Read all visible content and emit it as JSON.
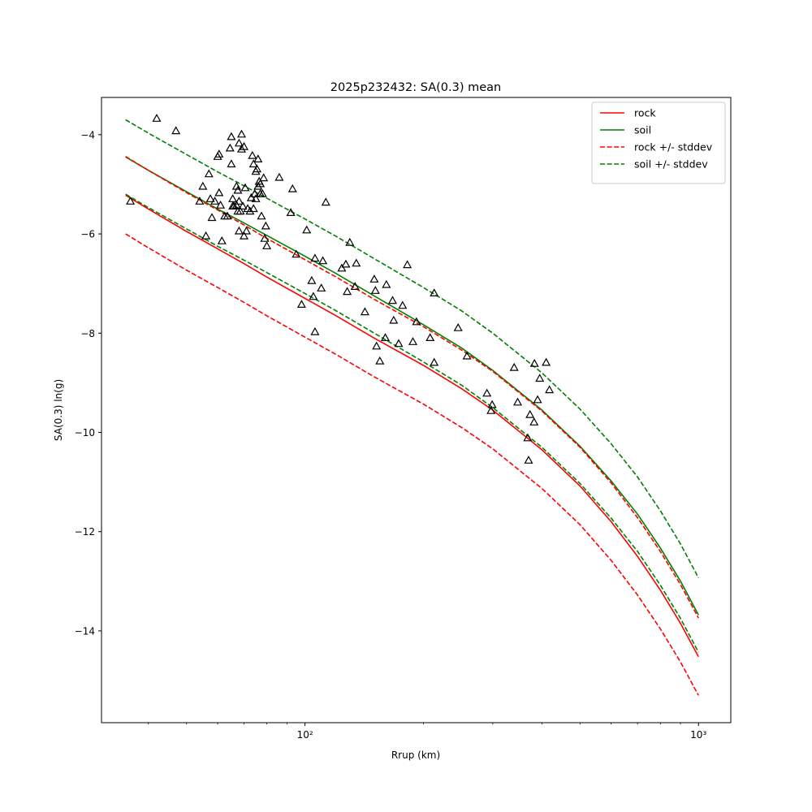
{
  "chart_data": {
    "type": "line",
    "title": "2025p232432: SA(0.3) mean",
    "xlabel": "Rrup (km)",
    "ylabel": "SA(0.3) ln(g)",
    "x_scale": "log",
    "xlim": [
      30.4,
      1208
    ],
    "ylim": [
      -15.85,
      -3.25
    ],
    "x_tick_labels": [
      {
        "value": 100,
        "label": "10²"
      },
      {
        "value": 1000,
        "label": "10³"
      }
    ],
    "y_ticks": [
      -14,
      -12,
      -10,
      -8,
      -6,
      -4
    ],
    "y_tick_labels": [
      "−14",
      "−12",
      "−10",
      "−8",
      "−6",
      "−4"
    ],
    "grid": false,
    "legend_position": "top-right",
    "series": [
      {
        "name": "rock",
        "color": "#ff0000",
        "dash": "solid",
        "legend": true,
        "x": [
          35,
          40,
          50,
          60,
          70,
          80,
          100,
          120,
          150,
          200,
          250,
          300,
          400,
          500,
          600,
          700,
          800,
          900,
          1000
        ],
        "y": [
          -5.22,
          -5.5,
          -5.95,
          -6.3,
          -6.6,
          -6.87,
          -7.3,
          -7.65,
          -8.1,
          -8.65,
          -9.12,
          -9.55,
          -10.35,
          -11.08,
          -11.8,
          -12.5,
          -13.18,
          -13.85,
          -14.52
        ]
      },
      {
        "name": "soil",
        "color": "#008000",
        "dash": "solid",
        "legend": true,
        "x": [
          35,
          40,
          50,
          60,
          70,
          80,
          100,
          120,
          150,
          200,
          250,
          300,
          400,
          500,
          600,
          700,
          800,
          900,
          1000
        ],
        "y": [
          -4.45,
          -4.72,
          -5.15,
          -5.5,
          -5.78,
          -6.03,
          -6.45,
          -6.8,
          -7.25,
          -7.83,
          -8.3,
          -8.75,
          -9.55,
          -10.28,
          -10.98,
          -11.65,
          -12.33,
          -13.0,
          -13.68
        ]
      },
      {
        "name": "rock +/- stddev",
        "color": "#ff0000",
        "dash": "dashed",
        "legend": true,
        "x": [
          35,
          40,
          50,
          60,
          70,
          80,
          100,
          120,
          150,
          200,
          250,
          300,
          400,
          500,
          600,
          700,
          800,
          900,
          1000
        ],
        "y": [
          -6.0,
          -6.28,
          -6.73,
          -7.08,
          -7.38,
          -7.65,
          -8.08,
          -8.43,
          -8.88,
          -9.43,
          -9.9,
          -10.33,
          -11.13,
          -11.86,
          -12.58,
          -13.28,
          -13.96,
          -14.63,
          -15.3
        ]
      },
      {
        "name": "rock +/- stddev",
        "color": "#ff0000",
        "dash": "dashed",
        "legend": false,
        "x": [
          35,
          40,
          50,
          60,
          70,
          80,
          100,
          120,
          150,
          200,
          250,
          300,
          400,
          500,
          600,
          700,
          800,
          900,
          1000
        ],
        "y": [
          -4.44,
          -4.72,
          -5.17,
          -5.52,
          -5.82,
          -6.09,
          -6.52,
          -6.87,
          -7.32,
          -7.87,
          -8.34,
          -8.77,
          -9.57,
          -10.3,
          -11.02,
          -11.72,
          -12.4,
          -13.07,
          -13.74
        ]
      },
      {
        "name": "soil +/- stddev",
        "color": "#008000",
        "dash": "dashed",
        "legend": true,
        "x": [
          35,
          40,
          50,
          60,
          70,
          80,
          100,
          120,
          150,
          200,
          250,
          300,
          400,
          500,
          600,
          700,
          800,
          900,
          1000
        ],
        "y": [
          -5.2,
          -5.47,
          -5.9,
          -6.25,
          -6.53,
          -6.78,
          -7.2,
          -7.55,
          -8.0,
          -8.58,
          -9.05,
          -9.5,
          -10.3,
          -11.03,
          -11.73,
          -12.4,
          -13.08,
          -13.75,
          -14.43
        ]
      },
      {
        "name": "soil +/- stddev",
        "color": "#008000",
        "dash": "dashed",
        "legend": false,
        "x": [
          35,
          40,
          50,
          60,
          70,
          80,
          100,
          120,
          150,
          200,
          250,
          300,
          400,
          500,
          600,
          700,
          800,
          900,
          1000
        ],
        "y": [
          -3.7,
          -3.97,
          -4.4,
          -4.75,
          -5.03,
          -5.28,
          -5.7,
          -6.05,
          -6.5,
          -7.08,
          -7.55,
          -8.0,
          -8.8,
          -9.53,
          -10.23,
          -10.9,
          -11.58,
          -12.25,
          -12.93
        ]
      }
    ],
    "observations": {
      "marker": "triangle-open",
      "color": "#000000",
      "points": [
        [
          36,
          -5.35
        ],
        [
          42,
          -3.68
        ],
        [
          47,
          -3.93
        ],
        [
          54,
          -5.35
        ],
        [
          55,
          -5.05
        ],
        [
          56,
          -6.05
        ],
        [
          57,
          -4.8
        ],
        [
          57.5,
          -5.3
        ],
        [
          58,
          -5.68
        ],
        [
          59,
          -5.35
        ],
        [
          60,
          -4.45
        ],
        [
          60.5,
          -4.4
        ],
        [
          60.5,
          -5.18
        ],
        [
          61,
          -5.43
        ],
        [
          61.5,
          -6.15
        ],
        [
          62.5,
          -5.65
        ],
        [
          63.5,
          -5.65
        ],
        [
          64.5,
          -4.28
        ],
        [
          65,
          -4.05
        ],
        [
          65,
          -4.6
        ],
        [
          65.5,
          -5.45
        ],
        [
          65.5,
          -5.3
        ],
        [
          66,
          -5.45
        ],
        [
          67,
          -5.43
        ],
        [
          67,
          -5.05
        ],
        [
          67.5,
          -5.55
        ],
        [
          67.5,
          -5.13
        ],
        [
          68,
          -5.35
        ],
        [
          68,
          -4.18
        ],
        [
          68,
          -5.95
        ],
        [
          68.5,
          -5.55
        ],
        [
          69,
          -4.0
        ],
        [
          69,
          -4.3
        ],
        [
          69.5,
          -5.45
        ],
        [
          70,
          -4.25
        ],
        [
          70,
          -6.05
        ],
        [
          70.5,
          -5.08
        ],
        [
          71,
          -5.95
        ],
        [
          71.5,
          -5.5
        ],
        [
          72.5,
          -5.55
        ],
        [
          73,
          -5.28
        ],
        [
          73.5,
          -4.43
        ],
        [
          74,
          -4.6
        ],
        [
          74,
          -5.5
        ],
        [
          74.5,
          -5.2
        ],
        [
          75,
          -4.75
        ],
        [
          75,
          -5.3
        ],
        [
          75.5,
          -4.7
        ],
        [
          76,
          -4.5
        ],
        [
          76,
          -5.05
        ],
        [
          76.5,
          -4.95
        ],
        [
          77,
          -5.2
        ],
        [
          77,
          -5.0
        ],
        [
          77.5,
          -5.65
        ],
        [
          78,
          -5.2
        ],
        [
          78.5,
          -4.88
        ],
        [
          79,
          -6.1
        ],
        [
          79.5,
          -5.85
        ],
        [
          80,
          -6.25
        ],
        [
          86,
          -4.87
        ],
        [
          92,
          -5.58
        ],
        [
          93,
          -5.1
        ],
        [
          95,
          -6.42
        ],
        [
          98,
          -7.43
        ],
        [
          101,
          -5.93
        ],
        [
          104,
          -6.95
        ],
        [
          105,
          -7.27
        ],
        [
          106,
          -6.5
        ],
        [
          106,
          -7.98
        ],
        [
          110,
          -7.1
        ],
        [
          111,
          -6.55
        ],
        [
          113,
          -5.37
        ],
        [
          124,
          -6.7
        ],
        [
          127,
          -6.62
        ],
        [
          128,
          -7.17
        ],
        [
          130,
          -6.18
        ],
        [
          134,
          -7.07
        ],
        [
          135,
          -6.6
        ],
        [
          142,
          -7.58
        ],
        [
          150,
          -6.92
        ],
        [
          151,
          -7.15
        ],
        [
          152,
          -8.27
        ],
        [
          155,
          -8.57
        ],
        [
          160,
          -8.1
        ],
        [
          161,
          -7.03
        ],
        [
          167,
          -7.35
        ],
        [
          168,
          -7.75
        ],
        [
          173,
          -8.22
        ],
        [
          177,
          -7.45
        ],
        [
          182,
          -6.63
        ],
        [
          188,
          -8.18
        ],
        [
          192,
          -7.78
        ],
        [
          208,
          -8.1
        ],
        [
          213,
          -7.2
        ],
        [
          213,
          -8.6
        ],
        [
          245,
          -7.9
        ],
        [
          258,
          -8.47
        ],
        [
          290,
          -9.22
        ],
        [
          297,
          -9.57
        ],
        [
          299,
          -9.45
        ],
        [
          340,
          -8.7
        ],
        [
          347,
          -9.4
        ],
        [
          368,
          -10.12
        ],
        [
          370,
          -10.57
        ],
        [
          373,
          -9.65
        ],
        [
          382,
          -9.8
        ],
        [
          383,
          -8.62
        ],
        [
          390,
          -9.35
        ],
        [
          395,
          -8.92
        ],
        [
          410,
          -8.6
        ],
        [
          418,
          -9.15
        ]
      ]
    }
  }
}
